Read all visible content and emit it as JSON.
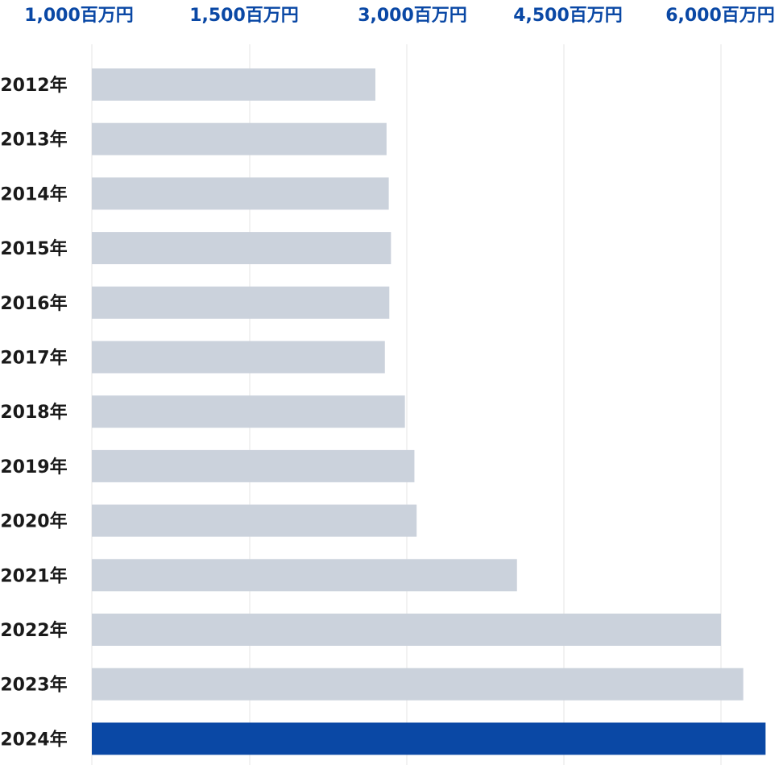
{
  "chart_data": {
    "type": "bar",
    "orientation": "horizontal",
    "categories": [
      "2012年",
      "2013年",
      "2014年",
      "2015年",
      "2016年",
      "2017年",
      "2018年",
      "2019年",
      "2020年",
      "2021年",
      "2022年",
      "2023年",
      "2024年"
    ],
    "values": [
      2900,
      3000,
      3020,
      3040,
      3025,
      2985,
      3165,
      3250,
      3270,
      4170,
      6000,
      6200,
      6400
    ],
    "highlight_index": 12,
    "x_ticks": [
      "1,000百万円",
      "1,500百万円",
      "3,000百万円",
      "4,500百万円",
      "6,000百万円"
    ],
    "grid": true,
    "title": "",
    "xlabel": "",
    "ylabel": ""
  },
  "colors": {
    "bar": "#cbd2dc",
    "highlight_bar": "#0a48a5",
    "tick_label": "#0a48a5",
    "category_label": "#1a1a1a",
    "grid": "#e6e6e6"
  }
}
